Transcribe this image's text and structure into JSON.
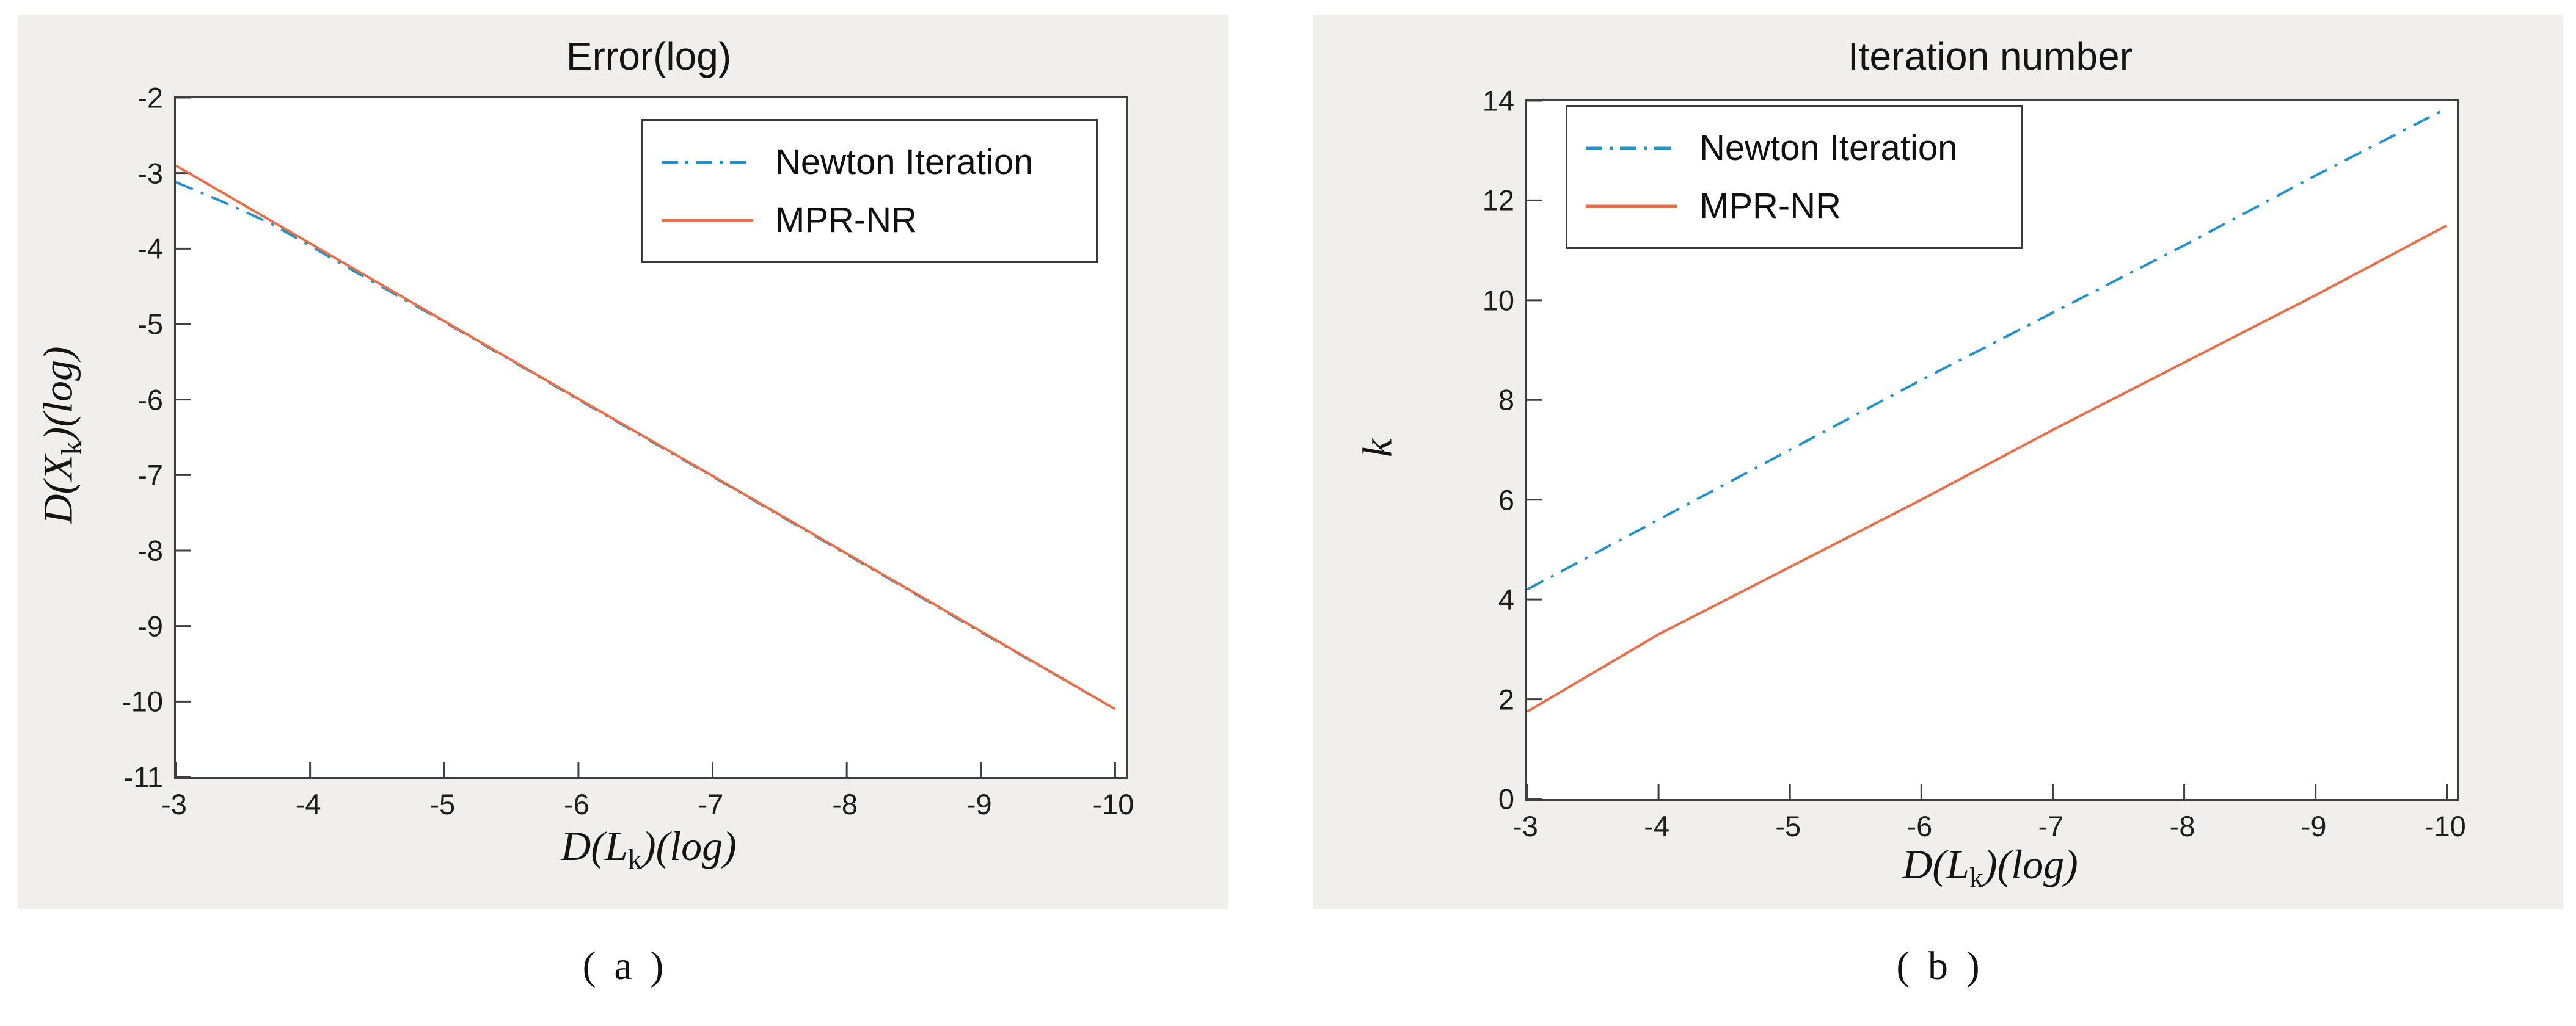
{
  "figure": {
    "background_color": "#f0efed",
    "axis_color": "#3f3f3f",
    "text_color": "#141414"
  },
  "chart_data": [
    {
      "id": "a",
      "type": "line",
      "title": "Error(log)",
      "caption": "(a)",
      "xlabel": {
        "pre": "D(L",
        "sub": "k",
        "post": ")(log)"
      },
      "ylabel": {
        "pre": "D(X",
        "sub": "k",
        "post": ")(log)"
      },
      "axes": {
        "xlim": [
          -3,
          -10.08
        ],
        "ylim": [
          -11,
          -2
        ],
        "x_ticks": [
          -3,
          -4,
          -5,
          -6,
          -7,
          -8,
          -9,
          -10
        ],
        "y_ticks": [
          -2,
          -3,
          -4,
          -5,
          -6,
          -7,
          -8,
          -9,
          -10,
          -11
        ],
        "x_direction": "reversed",
        "grid": false
      },
      "legend_position": "upper-right-inside",
      "series": [
        {
          "name": "Newton Iteration",
          "color": "#2193c9",
          "line_style": "dash-dot",
          "x": [
            -3,
            -3.35,
            -3.7,
            -4.0,
            -4.3,
            -5,
            -6,
            -7,
            -8,
            -9,
            -10
          ],
          "y": [
            -3.12,
            -3.38,
            -3.66,
            -3.96,
            -4.27,
            -4.97,
            -6.0,
            -7.02,
            -8.05,
            -9.08,
            -10.1
          ]
        },
        {
          "name": "MPR-NR",
          "color": "#e86f48",
          "line_style": "solid",
          "x": [
            -3,
            -4,
            -5,
            -6,
            -7,
            -8,
            -9,
            -10
          ],
          "y": [
            -2.9,
            -3.93,
            -4.96,
            -5.99,
            -7.01,
            -8.04,
            -9.07,
            -10.1
          ]
        }
      ]
    },
    {
      "id": "b",
      "type": "line",
      "title": "Iteration number",
      "caption": "(b)",
      "xlabel": {
        "pre": "D(L",
        "sub": "k",
        "post": ")(log)"
      },
      "ylabel": {
        "pre": "k",
        "sub": "",
        "post": ""
      },
      "axes": {
        "xlim": [
          -3,
          -10.08
        ],
        "ylim": [
          0,
          14
        ],
        "x_ticks": [
          -3,
          -4,
          -5,
          -6,
          -7,
          -8,
          -9,
          -10
        ],
        "y_ticks": [
          0,
          2,
          4,
          6,
          8,
          10,
          12,
          14
        ],
        "x_direction": "reversed",
        "grid": false
      },
      "legend_position": "upper-left-inside",
      "series": [
        {
          "name": "Newton Iteration",
          "color": "#2193c9",
          "line_style": "dash-dot",
          "x": [
            -3,
            -4,
            -5,
            -6,
            -7,
            -8,
            -9,
            -10
          ],
          "y": [
            4.2,
            5.6,
            7.0,
            8.4,
            9.75,
            11.1,
            12.5,
            13.85
          ]
        },
        {
          "name": "MPR-NR",
          "color": "#e86f48",
          "line_style": "solid",
          "x": [
            -3,
            -4,
            -5,
            -6,
            -7,
            -8,
            -9,
            -10
          ],
          "y": [
            1.75,
            3.3,
            4.65,
            6.0,
            7.4,
            8.75,
            10.1,
            11.5
          ]
        }
      ]
    }
  ]
}
